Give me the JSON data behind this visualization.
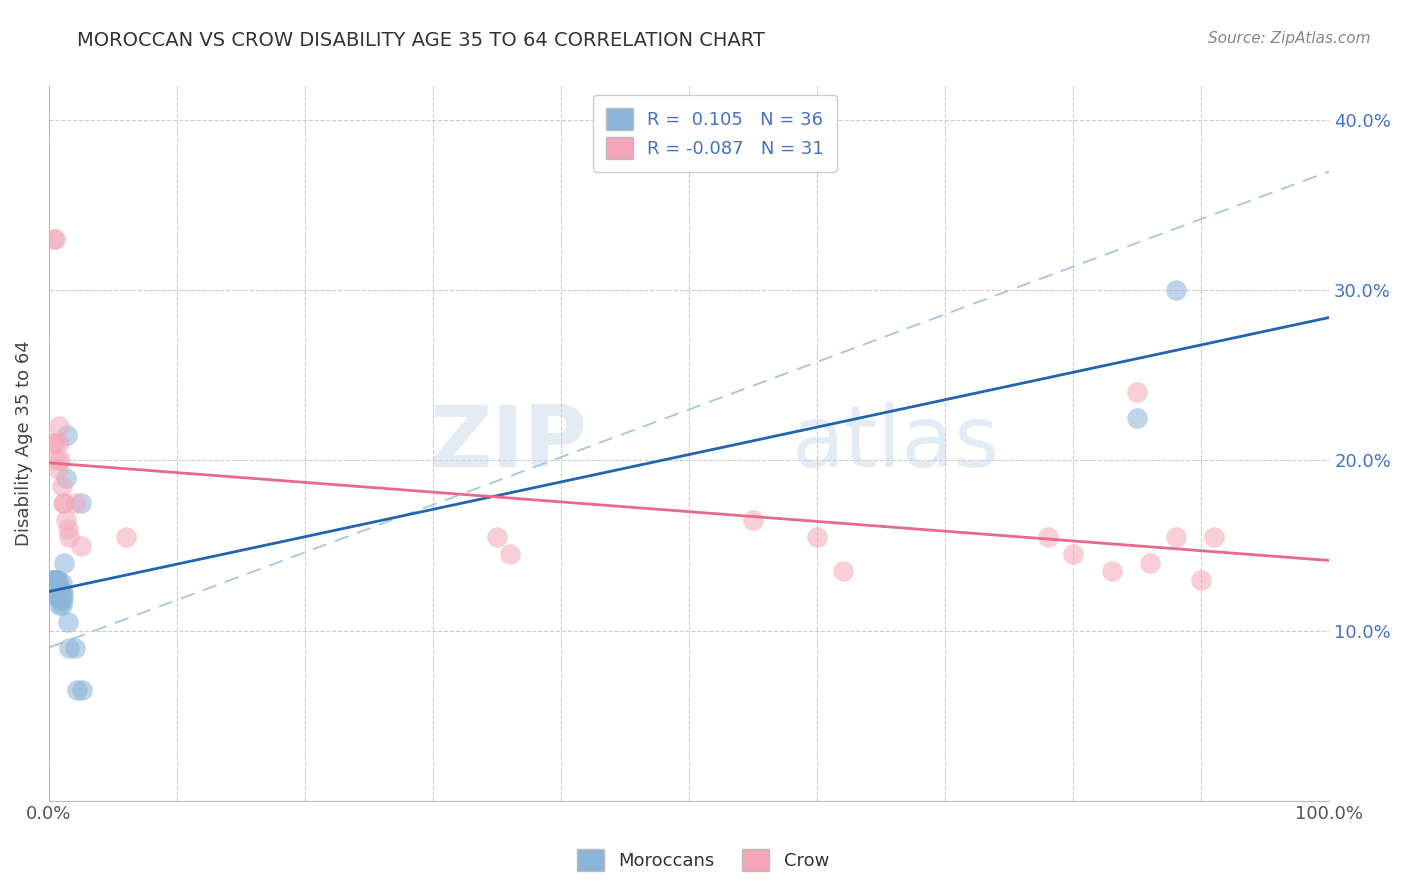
{
  "title": "MOROCCAN VS CROW DISABILITY AGE 35 TO 64 CORRELATION CHART",
  "source_text": "Source: ZipAtlas.com",
  "ylabel": "Disability Age 35 to 64",
  "xlim": [
    0.0,
    1.0
  ],
  "ylim": [
    0.0,
    0.42
  ],
  "x_ticks": [
    0.0,
    0.1,
    0.2,
    0.3,
    0.4,
    0.5,
    0.6,
    0.7,
    0.8,
    0.9,
    1.0
  ],
  "y_ticks": [
    0.0,
    0.1,
    0.2,
    0.3,
    0.4
  ],
  "legend_r1": "R =  0.105",
  "legend_n1": "N = 36",
  "legend_r2": "R = -0.087",
  "legend_n2": "N = 31",
  "moroccan_color": "#8ab4d8",
  "crow_color": "#f4a6b8",
  "moroccan_line_color": "#2166ac",
  "crow_line_color": "#e8698a",
  "dashed_line_color": "#a8c4e0",
  "moroccan_x": [
    0.001,
    0.002,
    0.003,
    0.003,
    0.004,
    0.004,
    0.005,
    0.005,
    0.006,
    0.006,
    0.007,
    0.007,
    0.007,
    0.008,
    0.008,
    0.008,
    0.009,
    0.009,
    0.009,
    0.01,
    0.01,
    0.01,
    0.01,
    0.011,
    0.011,
    0.012,
    0.013,
    0.014,
    0.015,
    0.016,
    0.02,
    0.022,
    0.025,
    0.026,
    0.85,
    0.88
  ],
  "moroccan_y": [
    0.125,
    0.13,
    0.125,
    0.13,
    0.125,
    0.13,
    0.125,
    0.13,
    0.125,
    0.13,
    0.12,
    0.125,
    0.13,
    0.115,
    0.12,
    0.125,
    0.118,
    0.12,
    0.125,
    0.115,
    0.12,
    0.123,
    0.128,
    0.118,
    0.122,
    0.14,
    0.19,
    0.215,
    0.105,
    0.09,
    0.09,
    0.065,
    0.175,
    0.065,
    0.225,
    0.3
  ],
  "crow_x": [
    0.003,
    0.004,
    0.005,
    0.005,
    0.006,
    0.007,
    0.008,
    0.008,
    0.009,
    0.01,
    0.011,
    0.012,
    0.013,
    0.015,
    0.016,
    0.02,
    0.025,
    0.06,
    0.35,
    0.36,
    0.55,
    0.6,
    0.62,
    0.78,
    0.8,
    0.83,
    0.85,
    0.86,
    0.88,
    0.9,
    0.91
  ],
  "crow_y": [
    0.21,
    0.33,
    0.21,
    0.33,
    0.2,
    0.195,
    0.21,
    0.22,
    0.2,
    0.185,
    0.175,
    0.175,
    0.165,
    0.16,
    0.155,
    0.175,
    0.15,
    0.155,
    0.155,
    0.145,
    0.165,
    0.155,
    0.135,
    0.155,
    0.145,
    0.135,
    0.24,
    0.14,
    0.155,
    0.13,
    0.155
  ],
  "watermark_zip": "ZIP",
  "watermark_atlas": "atlas",
  "background_color": "#ffffff",
  "grid_color": "#cccccc",
  "tick_label_color": "#4472c4",
  "title_color": "#333333"
}
